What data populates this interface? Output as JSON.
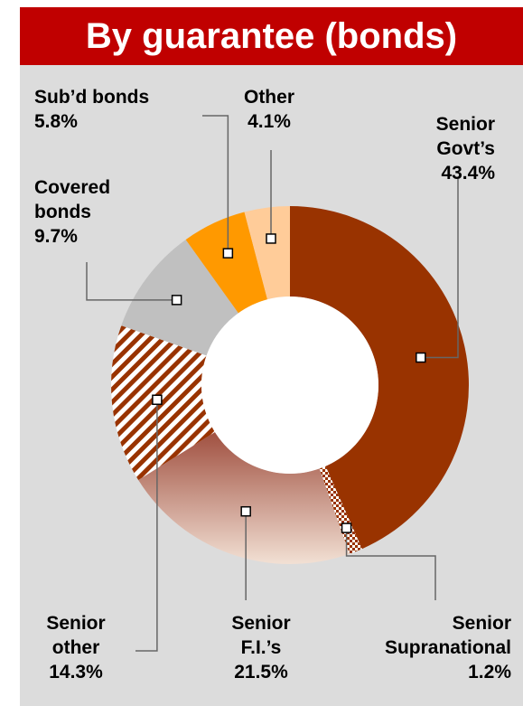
{
  "colors": {
    "title_bg": "#c00000",
    "panel_bg": "#dcdcdc",
    "senior_govt": "#993300",
    "senior_supranational": "#993300",
    "senior_fi_top": "#a05040",
    "senior_fi_bottom": "#f2e0d4",
    "senior_other": "#993300",
    "covered_bonds": "#c0c0c0",
    "subd_bonds": "#ff9900",
    "other": "#ffcc99"
  },
  "chart_data": {
    "type": "donut",
    "title": "By guarantee (bonds)",
    "unit": "%",
    "slices": [
      {
        "label_lines": [
          "Senior",
          "Govt’s"
        ],
        "value": 43.4,
        "value_text": "43.4%",
        "fill": "solid"
      },
      {
        "label_lines": [
          "Senior",
          "Supranational"
        ],
        "value": 1.2,
        "value_text": "1.2%",
        "fill": "checker"
      },
      {
        "label_lines": [
          "Senior",
          "F.I.’s"
        ],
        "value": 21.5,
        "value_text": "21.5%",
        "fill": "gradient"
      },
      {
        "label_lines": [
          "Senior",
          "other"
        ],
        "value": 14.3,
        "value_text": "14.3%",
        "fill": "stripes"
      },
      {
        "label_lines": [
          "Covered",
          "bonds"
        ],
        "value": 9.7,
        "value_text": "9.7%",
        "fill": "solid"
      },
      {
        "label_lines": [
          "Sub’d bonds"
        ],
        "value": 5.8,
        "value_text": "5.8%",
        "fill": "solid"
      },
      {
        "label_lines": [
          "Other"
        ],
        "value": 4.1,
        "value_text": "4.1%",
        "fill": "solid"
      }
    ]
  }
}
